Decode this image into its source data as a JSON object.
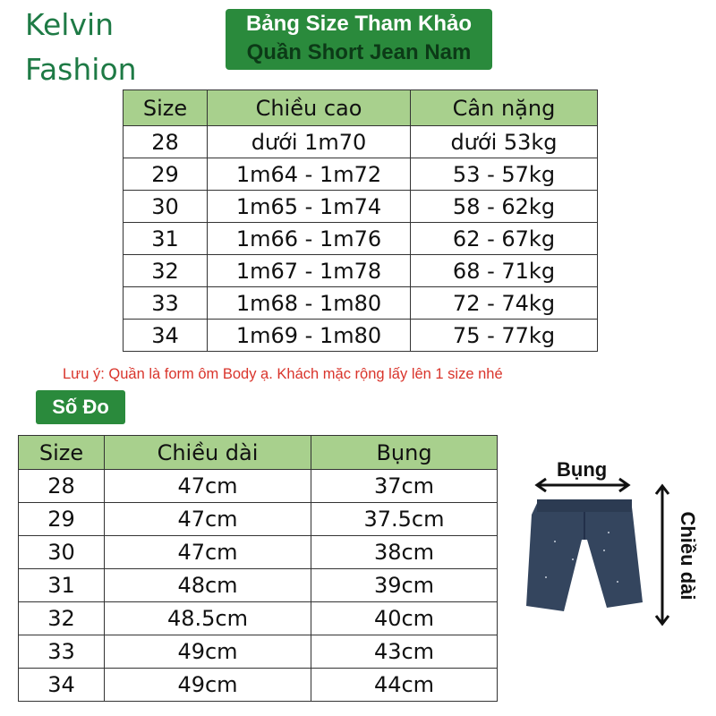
{
  "brand": {
    "line1": "Kelvin",
    "line2": "Fashion"
  },
  "title": {
    "line1": "Bảng Size Tham Khảo",
    "line2": "Quần Short Jean Nam"
  },
  "size_table": {
    "headers": [
      "Size",
      "Chiều cao",
      "Cân nặng"
    ],
    "rows": [
      [
        "28",
        "dưới 1m70",
        "dưới 53kg"
      ],
      [
        "29",
        "1m64 - 1m72",
        "53 - 57kg"
      ],
      [
        "30",
        "1m65 - 1m74",
        "58 - 62kg"
      ],
      [
        "31",
        "1m66 - 1m76",
        "62 - 67kg"
      ],
      [
        "32",
        "1m67 - 1m78",
        "68 - 71kg"
      ],
      [
        "33",
        "1m68 - 1m80",
        "72 - 74kg"
      ],
      [
        "34",
        "1m69 - 1m80",
        "75 - 77kg"
      ]
    ]
  },
  "note": "Lưu ý: Quần là form ôm Body ạ. Khách mặc rộng lấy lên 1 size nhé",
  "measure_label": "Số  Đo",
  "measure_table": {
    "headers": [
      "Size",
      "Chiều dài",
      "Bụng"
    ],
    "rows": [
      [
        "28",
        "47cm",
        "37cm"
      ],
      [
        "29",
        "47cm",
        "37.5cm"
      ],
      [
        "30",
        "47cm",
        "38cm"
      ],
      [
        "31",
        "48cm",
        "39cm"
      ],
      [
        "32",
        "48.5cm",
        "40cm"
      ],
      [
        "33",
        "49cm",
        "43cm"
      ],
      [
        "34",
        "49cm",
        "44cm"
      ]
    ]
  },
  "diagram": {
    "waist_label": "Bụng",
    "length_label": "Chiều dài"
  },
  "colors": {
    "brand_green": "#1e7a45",
    "box_green": "#2a8a3c",
    "header_green": "#a8d08d",
    "note_red": "#d9342b",
    "denim": "#34455e"
  }
}
